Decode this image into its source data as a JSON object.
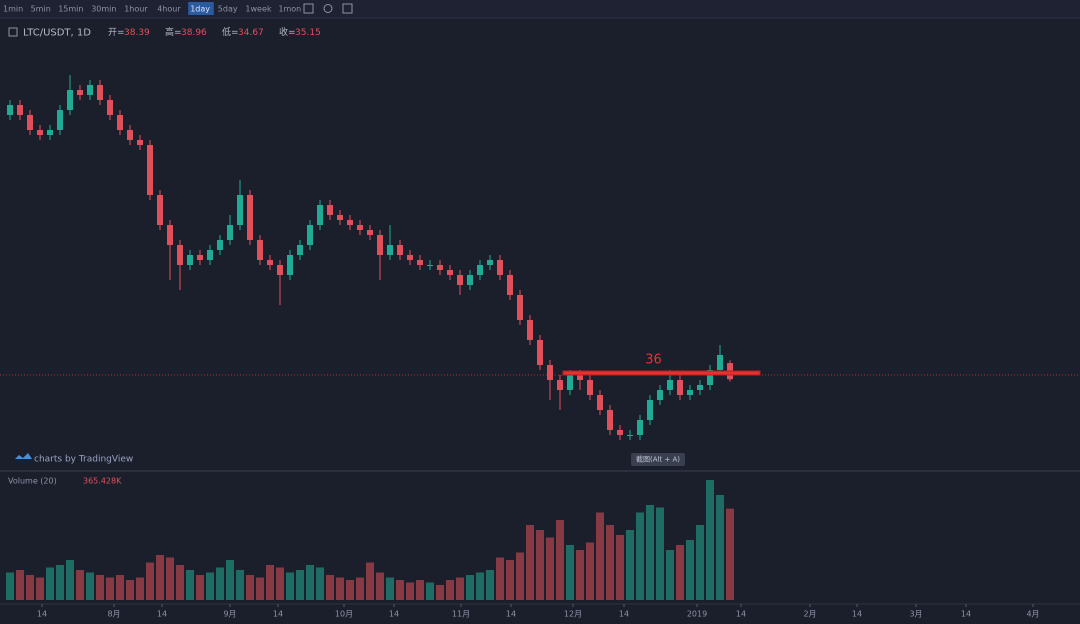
{
  "toolbar": [
    "1min",
    "5min",
    "15min",
    "30min",
    "1hour",
    "4hour",
    "1day",
    "5day",
    "1week",
    "1mon"
  ],
  "active_interval": "1day",
  "chart_data": {
    "type": "candlestick",
    "symbol": "LTC/USDT, 1D",
    "legend_labels": [
      "开=",
      "高=",
      "低=",
      "收="
    ],
    "ohlc": [
      [
        88,
        91,
        87,
        90
      ],
      [
        90,
        91,
        87,
        88
      ],
      [
        88,
        89,
        84,
        85
      ],
      [
        85,
        86,
        83,
        84
      ],
      [
        84,
        86,
        83,
        85
      ],
      [
        85,
        90,
        84,
        89
      ],
      [
        89,
        96,
        88,
        93
      ],
      [
        93,
        94,
        91,
        92
      ],
      [
        92,
        95,
        91,
        94
      ],
      [
        94,
        95,
        90,
        91
      ],
      [
        91,
        92,
        87,
        88
      ],
      [
        88,
        89,
        84,
        85
      ],
      [
        85,
        86,
        82,
        83
      ],
      [
        83,
        84,
        81,
        82
      ],
      [
        82,
        83,
        71,
        72
      ],
      [
        72,
        73,
        65,
        66
      ],
      [
        66,
        67,
        55,
        62
      ],
      [
        62,
        63,
        53,
        58
      ],
      [
        58,
        61,
        57,
        60
      ],
      [
        60,
        61,
        58,
        59
      ],
      [
        59,
        62,
        58,
        61
      ],
      [
        61,
        64,
        60,
        63
      ],
      [
        63,
        68,
        62,
        66
      ],
      [
        66,
        75,
        65,
        72
      ],
      [
        72,
        73,
        62,
        63
      ],
      [
        63,
        64,
        58,
        59
      ],
      [
        59,
        60,
        57,
        58
      ],
      [
        58,
        59,
        50,
        56
      ],
      [
        56,
        61,
        55,
        60
      ],
      [
        60,
        63,
        59,
        62
      ],
      [
        62,
        67,
        61,
        66
      ],
      [
        66,
        71,
        65,
        70
      ],
      [
        70,
        71,
        67,
        68
      ],
      [
        68,
        69,
        66,
        67
      ],
      [
        67,
        68,
        65,
        66
      ],
      [
        66,
        67,
        64,
        65
      ],
      [
        65,
        66,
        63,
        64
      ],
      [
        64,
        65,
        55,
        60
      ],
      [
        60,
        66,
        59,
        62
      ],
      [
        62,
        63,
        59,
        60
      ],
      [
        60,
        61,
        58,
        59
      ],
      [
        59,
        60,
        57,
        58
      ],
      [
        58,
        59,
        57,
        58
      ],
      [
        58,
        59,
        56,
        57
      ],
      [
        57,
        58,
        55,
        56
      ],
      [
        56,
        57,
        52,
        54
      ],
      [
        54,
        57,
        53,
        56
      ],
      [
        56,
        59,
        55,
        58
      ],
      [
        58,
        60,
        57,
        59
      ],
      [
        59,
        60,
        55,
        56
      ],
      [
        56,
        57,
        51,
        52
      ],
      [
        52,
        53,
        46,
        47
      ],
      [
        47,
        48,
        42,
        43
      ],
      [
        43,
        44,
        37,
        38
      ],
      [
        38,
        39,
        31,
        35
      ],
      [
        35,
        36,
        29,
        33
      ],
      [
        33,
        37,
        32,
        36
      ],
      [
        36,
        37,
        33,
        35
      ],
      [
        35,
        36,
        31,
        32
      ],
      [
        32,
        33,
        28,
        29
      ],
      [
        29,
        30,
        24,
        25
      ],
      [
        25,
        26,
        23,
        24
      ],
      [
        24,
        25,
        23,
        24
      ],
      [
        24,
        28,
        23,
        27
      ],
      [
        27,
        32,
        26,
        31
      ],
      [
        31,
        34,
        30,
        33
      ],
      [
        33,
        37,
        32,
        35
      ],
      [
        35,
        36,
        31,
        32
      ],
      [
        32,
        34,
        31,
        33
      ],
      [
        33,
        35,
        32,
        34
      ],
      [
        34,
        38,
        33,
        37
      ],
      [
        37,
        42,
        36,
        40
      ],
      [
        38.39,
        38.96,
        34.67,
        35.15
      ]
    ],
    "ylim": [
      18,
      102
    ],
    "up_color": "#22ab94",
    "down_color": "#e0505a",
    "hline": {
      "value": 36,
      "color": "#e8312e"
    },
    "volume_title": "Volume (20)",
    "volume": [
      110,
      120,
      100,
      90,
      130,
      140,
      160,
      120,
      110,
      100,
      90,
      100,
      80,
      90,
      150,
      180,
      170,
      140,
      120,
      100,
      110,
      130,
      160,
      120,
      100,
      90,
      140,
      130,
      110,
      120,
      140,
      130,
      100,
      90,
      80,
      90,
      150,
      110,
      90,
      80,
      70,
      80,
      70,
      60,
      80,
      90,
      100,
      110,
      120,
      170,
      160,
      190,
      300,
      280,
      250,
      320,
      220,
      200,
      230,
      350,
      300,
      260,
      280,
      350,
      380,
      370,
      200,
      220,
      240,
      300,
      480,
      420,
      365.428
    ],
    "volume_value_label": "365.428K",
    "volume_lim": [
      0,
      500
    ],
    "xticks": [
      {
        "value": 3.2,
        "label": "14"
      },
      {
        "value": 10.4,
        "label": "8月"
      },
      {
        "value": 15.2,
        "label": "14"
      },
      {
        "value": 22,
        "label": "9月"
      },
      {
        "value": 26.8,
        "label": "14"
      },
      {
        "value": 33.4,
        "label": "10月"
      },
      {
        "value": 38.4,
        "label": "14"
      },
      {
        "value": 45.1,
        "label": "11月"
      },
      {
        "value": 50.1,
        "label": "14"
      },
      {
        "value": 56.3,
        "label": "12月"
      },
      {
        "value": 61.4,
        "label": "14"
      },
      {
        "value": 68.7,
        "label": "2019"
      },
      {
        "value": 73.1,
        "label": "14"
      },
      {
        "value": 80,
        "label": "2月"
      },
      {
        "value": 84.7,
        "label": "14"
      },
      {
        "value": 90.6,
        "label": "3月"
      },
      {
        "value": 95.6,
        "label": "14"
      },
      {
        "value": 102.3,
        "label": "4月"
      }
    ],
    "watermark": "charts by TradingView",
    "tooltip": "截图(Alt + A)"
  }
}
